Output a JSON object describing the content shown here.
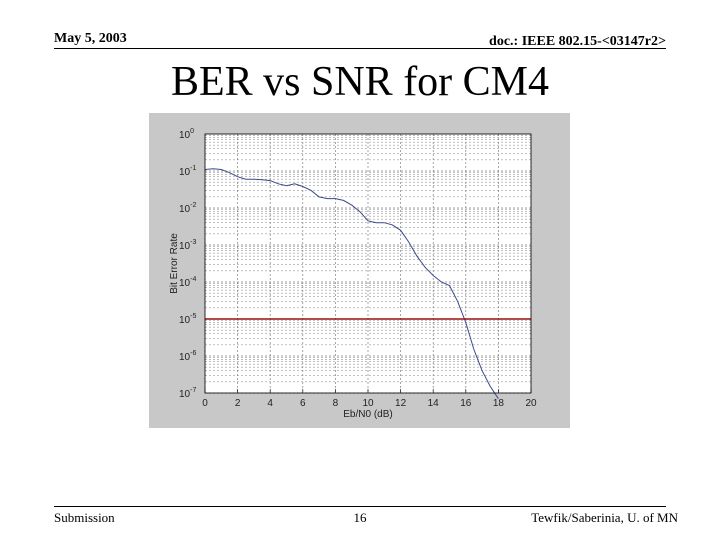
{
  "header": {
    "date": "May 5, 2003",
    "doc": "doc.: IEEE 802.15-<03147r2>"
  },
  "slide": {
    "title": "BER vs SNR for CM4"
  },
  "footer": {
    "left": "Submission",
    "page": "16",
    "right": "Tewfik/Saberinia, U. of MN"
  },
  "chart_data": {
    "type": "line",
    "xlabel": "Eb/N0 (dB)",
    "ylabel": "Bit Error Rate",
    "xlim": [
      0,
      20
    ],
    "ylim": [
      1e-07,
      1
    ],
    "yscale": "log",
    "xticks": [
      "0",
      "2",
      "4",
      "6",
      "8",
      "10",
      "12",
      "14",
      "16",
      "18",
      "20"
    ],
    "yticks": [
      {
        "base": "10",
        "exp": "0",
        "value": 1
      },
      {
        "base": "10",
        "exp": "-1",
        "value": 0.1
      },
      {
        "base": "10",
        "exp": "-2",
        "value": 0.01
      },
      {
        "base": "10",
        "exp": "-3",
        "value": 0.001
      },
      {
        "base": "10",
        "exp": "-4",
        "value": 0.0001
      },
      {
        "base": "10",
        "exp": "-5",
        "value": 1e-05
      },
      {
        "base": "10",
        "exp": "-6",
        "value": 1e-06
      },
      {
        "base": "10",
        "exp": "-7",
        "value": 1e-07
      }
    ],
    "grid": true,
    "series": [
      {
        "color": "#3a4a8a",
        "x": [
          0,
          0.5,
          1,
          1.5,
          2,
          2.5,
          3,
          3.5,
          4,
          4.5,
          5,
          5.5,
          6,
          6.5,
          7,
          7.5,
          8,
          8.5,
          9,
          9.5,
          10,
          10.5,
          11,
          11.5,
          12,
          12.5,
          13,
          13.5,
          14,
          14.5,
          15,
          15.5,
          16,
          16.5,
          17,
          17.5,
          18
        ],
        "y": [
          0.11,
          0.115,
          0.11,
          0.09,
          0.07,
          0.06,
          0.06,
          0.058,
          0.055,
          0.045,
          0.04,
          0.045,
          0.038,
          0.03,
          0.02,
          0.018,
          0.018,
          0.016,
          0.012,
          0.008,
          0.0045,
          0.004,
          0.004,
          0.0035,
          0.0025,
          0.0012,
          0.0005,
          0.00025,
          0.00015,
          0.0001,
          8e-05,
          3e-05,
          8e-06,
          1.5e-06,
          4e-07,
          1.5e-07,
          7e-08
        ]
      },
      {
        "color": "#9b1010",
        "x": [
          0,
          20
        ],
        "y": [
          1e-05,
          1e-05
        ]
      }
    ]
  }
}
